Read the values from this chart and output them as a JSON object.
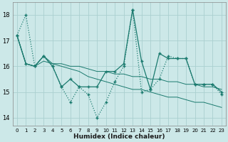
{
  "xlabel": "Humidex (Indice chaleur)",
  "bg_color": "#cce8e8",
  "line_color": "#1a7a6e",
  "grid_color": "#aad0d0",
  "xlim": [
    -0.5,
    23.5
  ],
  "ylim": [
    13.7,
    18.5
  ],
  "yticks": [
    14,
    15,
    16,
    17,
    18
  ],
  "xticks": [
    0,
    1,
    2,
    3,
    4,
    5,
    6,
    7,
    8,
    9,
    10,
    11,
    12,
    13,
    14,
    15,
    16,
    17,
    18,
    19,
    20,
    21,
    22,
    23
  ],
  "series_dotted": [
    17.2,
    18.0,
    16.0,
    16.4,
    16.0,
    15.2,
    14.6,
    15.2,
    14.9,
    14.0,
    14.6,
    15.4,
    16.0,
    18.2,
    15.0,
    15.1,
    15.5,
    16.4,
    16.3,
    16.3,
    15.3,
    15.3,
    15.3,
    14.9
  ],
  "series_solid1": [
    17.2,
    16.1,
    16.0,
    16.4,
    16.0,
    15.2,
    15.5,
    15.2,
    15.2,
    15.2,
    15.8,
    15.8,
    16.1,
    18.2,
    16.2,
    15.1,
    16.5,
    16.3,
    16.3,
    16.3,
    15.3,
    15.3,
    15.3,
    15.0
  ],
  "series_solid2": [
    17.2,
    16.1,
    16.0,
    16.4,
    16.1,
    16.1,
    16.0,
    16.0,
    15.9,
    15.8,
    15.8,
    15.7,
    15.7,
    15.6,
    15.6,
    15.5,
    15.5,
    15.4,
    15.4,
    15.3,
    15.3,
    15.2,
    15.2,
    15.1
  ],
  "series_solid3": [
    17.2,
    16.1,
    16.0,
    16.2,
    16.1,
    16.0,
    15.9,
    15.8,
    15.6,
    15.5,
    15.4,
    15.3,
    15.2,
    15.1,
    15.1,
    15.0,
    14.9,
    14.8,
    14.8,
    14.7,
    14.6,
    14.6,
    14.5,
    14.4
  ]
}
